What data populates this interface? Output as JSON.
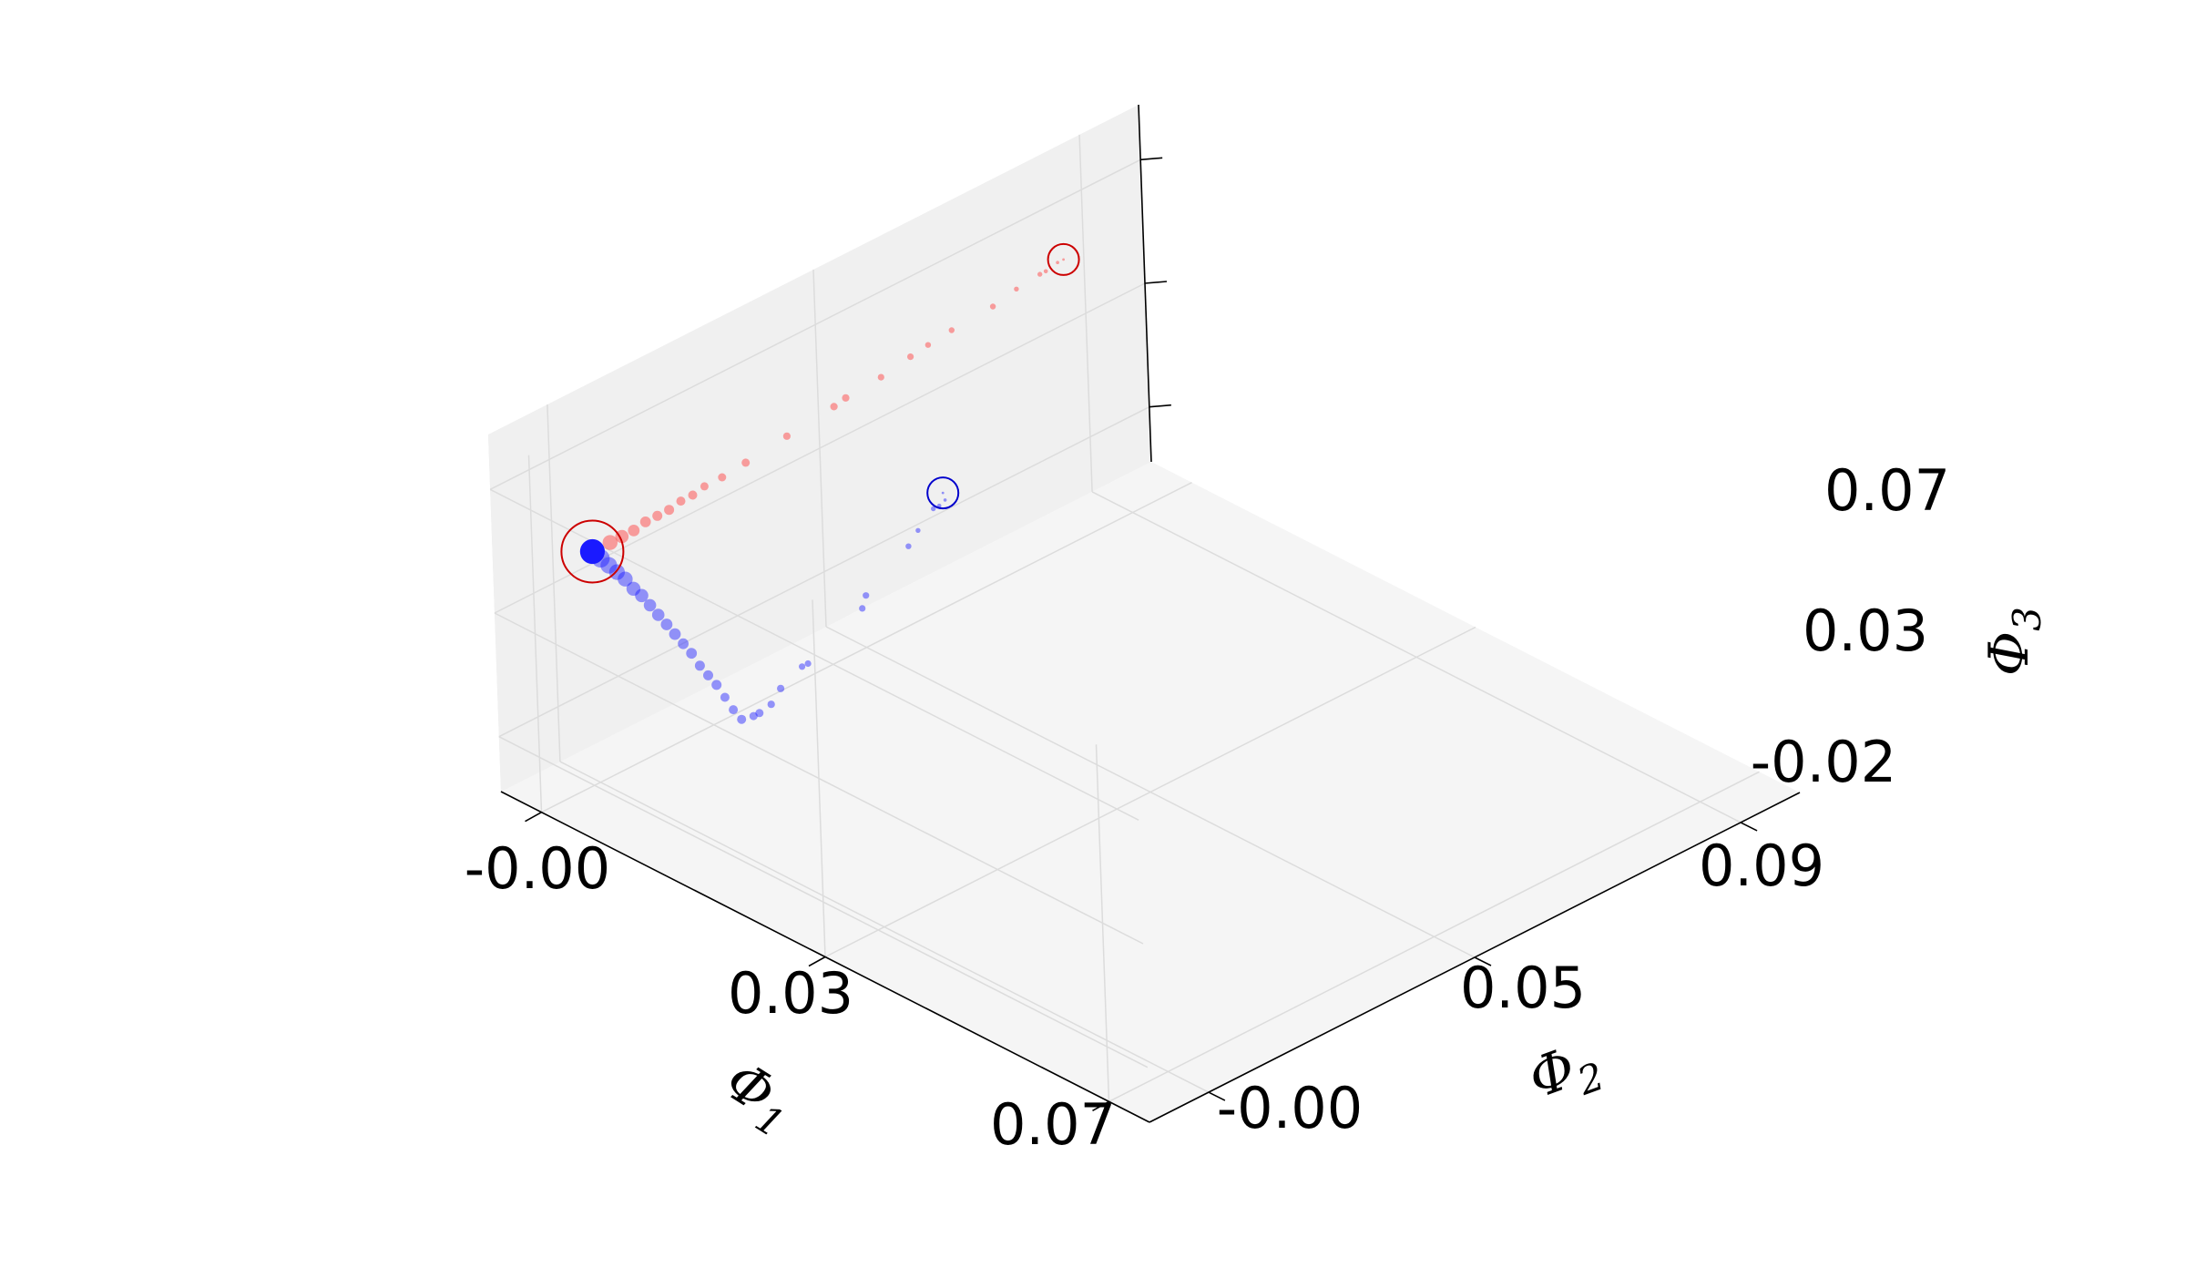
{
  "chart_data": {
    "type": "scatter",
    "projection": "3d",
    "axes": {
      "x": {
        "label": "Φ",
        "label_sub": "1",
        "ticks": [
          "-0.00",
          "0.03",
          "0.07"
        ],
        "range": [
          -0.005,
          0.075
        ]
      },
      "y": {
        "label": "Φ",
        "label_sub": "2",
        "ticks": [
          "-0.00",
          "0.05",
          "0.09"
        ],
        "range": [
          -0.01,
          0.1
        ]
      },
      "z": {
        "label": "Φ",
        "label_sub": "3",
        "ticks": [
          "-0.02",
          "0.03",
          "0.07"
        ],
        "range": [
          -0.04,
          0.09
        ]
      }
    },
    "grid": true,
    "colors": {
      "red_series": "#ff3333",
      "blue_series": "#1a1aff",
      "red_marker": "#cc0000",
      "blue_marker": "#0000cc",
      "pane_left": "#ebebeb",
      "pane_right": "#f0f0f0",
      "pane_floor": "#f5f5f5"
    },
    "series": [
      {
        "color": "red",
        "points": [
          {
            "x": 0.0,
            "y": 0.0,
            "z": 0.044,
            "s": 24
          },
          {
            "x": 0.0,
            "y": 0.003,
            "z": 0.044,
            "s": 18
          },
          {
            "x": 0.0,
            "y": 0.005,
            "z": 0.044,
            "s": 16
          },
          {
            "x": 0.0,
            "y": 0.007,
            "z": 0.044,
            "s": 14
          },
          {
            "x": 0.0,
            "y": 0.009,
            "z": 0.045,
            "s": 13
          },
          {
            "x": 0.0,
            "y": 0.011,
            "z": 0.045,
            "s": 12
          },
          {
            "x": 0.0,
            "y": 0.013,
            "z": 0.045,
            "s": 12
          },
          {
            "x": 0.0,
            "y": 0.015,
            "z": 0.046,
            "s": 11
          },
          {
            "x": 0.0,
            "y": 0.017,
            "z": 0.046,
            "s": 11
          },
          {
            "x": 0.0,
            "y": 0.019,
            "z": 0.047,
            "s": 10
          },
          {
            "x": 0.0,
            "y": 0.022,
            "z": 0.047,
            "s": 10
          },
          {
            "x": 0.0,
            "y": 0.026,
            "z": 0.048,
            "s": 10
          },
          {
            "x": 0.0,
            "y": 0.033,
            "z": 0.05,
            "s": 9
          },
          {
            "x": 0.0,
            "y": 0.041,
            "z": 0.052,
            "s": 9
          },
          {
            "x": 0.0,
            "y": 0.043,
            "z": 0.053,
            "s": 9
          },
          {
            "x": 0.0,
            "y": 0.049,
            "z": 0.054,
            "s": 8
          },
          {
            "x": 0.0,
            "y": 0.054,
            "z": 0.056,
            "s": 8
          },
          {
            "x": 0.0,
            "y": 0.057,
            "z": 0.057,
            "s": 7
          },
          {
            "x": 0.0,
            "y": 0.061,
            "z": 0.058,
            "s": 7
          },
          {
            "x": 0.0,
            "y": 0.068,
            "z": 0.059,
            "s": 7
          },
          {
            "x": 0.0,
            "y": 0.072,
            "z": 0.061,
            "s": 6
          },
          {
            "x": 0.0,
            "y": 0.076,
            "z": 0.062,
            "s": 6
          },
          {
            "x": 0.0,
            "y": 0.077,
            "z": 0.062,
            "s": 5
          },
          {
            "x": 0.0,
            "y": 0.079,
            "z": 0.063,
            "s": 4
          },
          {
            "x": 0.0,
            "y": 0.08,
            "z": 0.063,
            "s": 3
          }
        ]
      },
      {
        "color": "blue",
        "points": [
          {
            "x": 0.0,
            "y": 0.0,
            "z": 0.044,
            "s": 30
          },
          {
            "x": 0.001,
            "y": 0.0,
            "z": 0.043,
            "s": 22
          },
          {
            "x": 0.002,
            "y": 0.0,
            "z": 0.042,
            "s": 20
          },
          {
            "x": 0.003,
            "y": 0.0,
            "z": 0.041,
            "s": 19
          },
          {
            "x": 0.004,
            "y": 0.0,
            "z": 0.04,
            "s": 18
          },
          {
            "x": 0.005,
            "y": 0.0,
            "z": 0.038,
            "s": 17
          },
          {
            "x": 0.006,
            "y": 0.0,
            "z": 0.037,
            "s": 16
          },
          {
            "x": 0.007,
            "y": 0.0,
            "z": 0.035,
            "s": 15
          },
          {
            "x": 0.008,
            "y": 0.0,
            "z": 0.033,
            "s": 15
          },
          {
            "x": 0.009,
            "y": 0.0,
            "z": 0.031,
            "s": 14
          },
          {
            "x": 0.01,
            "y": 0.0,
            "z": 0.029,
            "s": 14
          },
          {
            "x": 0.011,
            "y": 0.0,
            "z": 0.027,
            "s": 13
          },
          {
            "x": 0.012,
            "y": 0.0,
            "z": 0.025,
            "s": 13
          },
          {
            "x": 0.013,
            "y": 0.0,
            "z": 0.022,
            "s": 12
          },
          {
            "x": 0.014,
            "y": 0.0,
            "z": 0.02,
            "s": 12
          },
          {
            "x": 0.015,
            "y": 0.0,
            "z": 0.018,
            "s": 12
          },
          {
            "x": 0.016,
            "y": 0.0,
            "z": 0.015,
            "s": 11
          },
          {
            "x": 0.017,
            "y": 0.0,
            "z": 0.012,
            "s": 11
          },
          {
            "x": 0.018,
            "y": 0.0,
            "z": 0.01,
            "s": 11
          },
          {
            "x": 0.018,
            "y": 0.002,
            "z": 0.009,
            "s": 10
          },
          {
            "x": 0.018,
            "y": 0.003,
            "z": 0.009,
            "s": 10
          },
          {
            "x": 0.018,
            "y": 0.005,
            "z": 0.01,
            "s": 9
          },
          {
            "x": 0.017,
            "y": 0.008,
            "z": 0.011,
            "s": 9
          },
          {
            "x": 0.016,
            "y": 0.013,
            "z": 0.012,
            "s": 8
          },
          {
            "x": 0.016,
            "y": 0.014,
            "z": 0.012,
            "s": 8
          },
          {
            "x": 0.014,
            "y": 0.026,
            "z": 0.016,
            "s": 8
          },
          {
            "x": 0.013,
            "y": 0.028,
            "z": 0.017,
            "s": 8
          },
          {
            "x": 0.011,
            "y": 0.038,
            "z": 0.021,
            "s": 7
          },
          {
            "x": 0.01,
            "y": 0.041,
            "z": 0.022,
            "s": 6
          },
          {
            "x": 0.009,
            "y": 0.045,
            "z": 0.024,
            "s": 6
          },
          {
            "x": 0.009,
            "y": 0.046,
            "z": 0.024,
            "s": 5
          },
          {
            "x": 0.009,
            "y": 0.047,
            "z": 0.025,
            "s": 4
          },
          {
            "x": 0.008,
            "y": 0.048,
            "z": 0.025,
            "s": 3
          }
        ]
      }
    ],
    "markers": [
      {
        "color": "red",
        "shape": "open-circle",
        "x": 0.0,
        "y": 0.08,
        "z": 0.063,
        "size": "medium"
      },
      {
        "color": "blue",
        "shape": "open-circle",
        "x": 0.008,
        "y": 0.048,
        "z": 0.025,
        "size": "medium"
      },
      {
        "color": "red",
        "shape": "open-circle",
        "x": 0.0,
        "y": 0.0,
        "z": 0.044,
        "size": "large"
      }
    ]
  }
}
